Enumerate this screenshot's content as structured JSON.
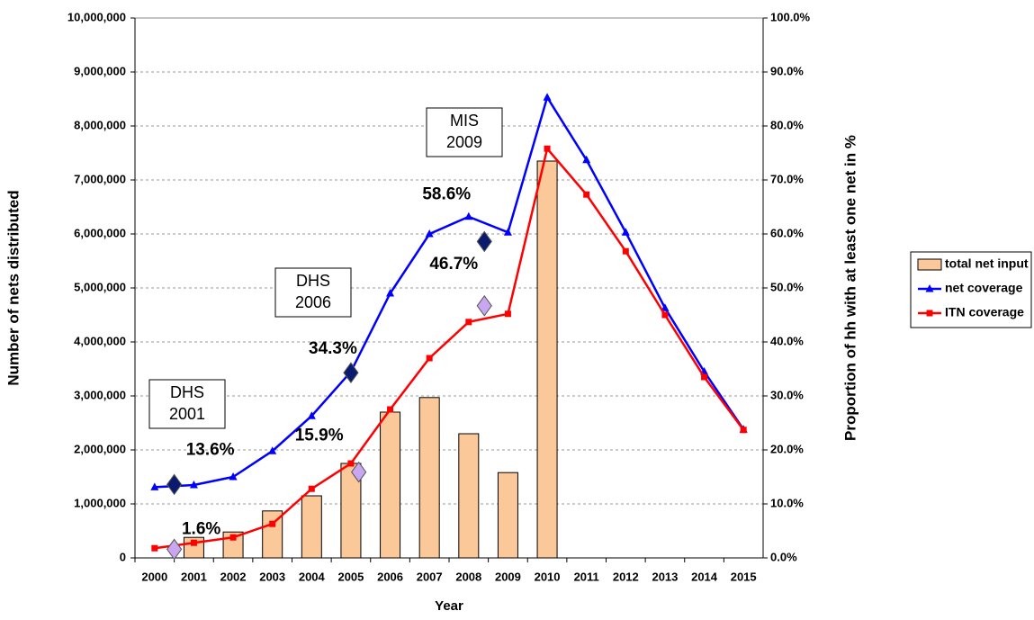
{
  "chart_data": {
    "type": "bar-line",
    "x_label": "Year",
    "y_label": "Number of nets distributed",
    "y2_label": "Proportion of hh with at least one net in %",
    "categories": [
      "2000",
      "2001",
      "2002",
      "2003",
      "2004",
      "2005",
      "2006",
      "2007",
      "2008",
      "2009",
      "2010",
      "2011",
      "2012",
      "2013",
      "2014",
      "2015"
    ],
    "ylim": [
      0,
      10000000
    ],
    "yticks": [
      0,
      {
        "value": 1000000,
        "label": "1,000,000"
      },
      {
        "value": 2000000,
        "label": "2,000,000"
      },
      {
        "value": 3000000,
        "label": "3,000,000"
      },
      {
        "value": 4000000,
        "label": "4,000,000"
      },
      {
        "value": 5000000,
        "label": "5,000,000"
      },
      {
        "value": 6000000,
        "label": "6,000,000"
      },
      {
        "value": 7000000,
        "label": "7,000,000"
      },
      {
        "value": 8000000,
        "label": "8,000,000"
      },
      {
        "value": 9000000,
        "label": "9,000,000"
      },
      {
        "value": 10000000,
        "label": "10,000,000"
      }
    ],
    "y2lim": [
      0,
      100
    ],
    "y2ticks": [
      {
        "value": 0,
        "label": "0.0%"
      },
      {
        "value": 10,
        "label": "10.0%"
      },
      {
        "value": 20,
        "label": "20.0%"
      },
      {
        "value": 30,
        "label": "30.0%"
      },
      {
        "value": 40,
        "label": "40.0%"
      },
      {
        "value": 50,
        "label": "50.0%"
      },
      {
        "value": 60,
        "label": "60.0%"
      },
      {
        "value": 70,
        "label": "70.0%"
      },
      {
        "value": 80,
        "label": "80.0%"
      },
      {
        "value": 90,
        "label": "90.0%"
      },
      {
        "value": 100,
        "label": "100.0%"
      }
    ],
    "grid": true,
    "legend": "right",
    "series": [
      {
        "name": "total net input",
        "type": "bar",
        "color": "#fbc89a",
        "values": [
          null,
          380000,
          480000,
          870000,
          1150000,
          1750000,
          2700000,
          2970000,
          2300000,
          1580000,
          7350000,
          null,
          null,
          null,
          null,
          null
        ]
      },
      {
        "name": "net coverage",
        "type": "line",
        "axis": "y2",
        "marker": "triangle",
        "color": "#0000ff",
        "values": [
          13.1,
          13.5,
          15.0,
          19.8,
          26.3,
          34.5,
          49.0,
          60.0,
          63.2,
          60.3,
          85.3,
          73.7,
          60.3,
          46.3,
          34.5,
          23.8
        ]
      },
      {
        "name": "ITN coverage",
        "type": "line",
        "axis": "y2",
        "marker": "square",
        "color": "#ff0000",
        "values": [
          1.8,
          2.8,
          3.8,
          6.3,
          12.8,
          17.5,
          27.5,
          37.0,
          43.7,
          45.2,
          75.8,
          67.3,
          56.8,
          45.0,
          33.5,
          23.7
        ]
      }
    ],
    "survey_points": [
      {
        "color": "#0a1a6e",
        "axis": "y2",
        "x": [
          2000.5,
          2005,
          2008.4
        ],
        "values": [
          13.6,
          34.3,
          58.6
        ],
        "value_labels": [
          "13.6%",
          "34.3%",
          "58.6%"
        ]
      },
      {
        "color": "#c9a6f0",
        "axis": "y2",
        "x": [
          2000.5,
          2005.2,
          2008.4
        ],
        "values": [
          1.6,
          15.9,
          46.7
        ],
        "value_labels": [
          "1.6%",
          "15.9%",
          "46.7%"
        ]
      }
    ],
    "annotations": [
      {
        "lines": [
          "DHS",
          "2001"
        ]
      },
      {
        "lines": [
          "DHS",
          "2006"
        ]
      },
      {
        "lines": [
          "MIS",
          "2009"
        ]
      }
    ]
  }
}
